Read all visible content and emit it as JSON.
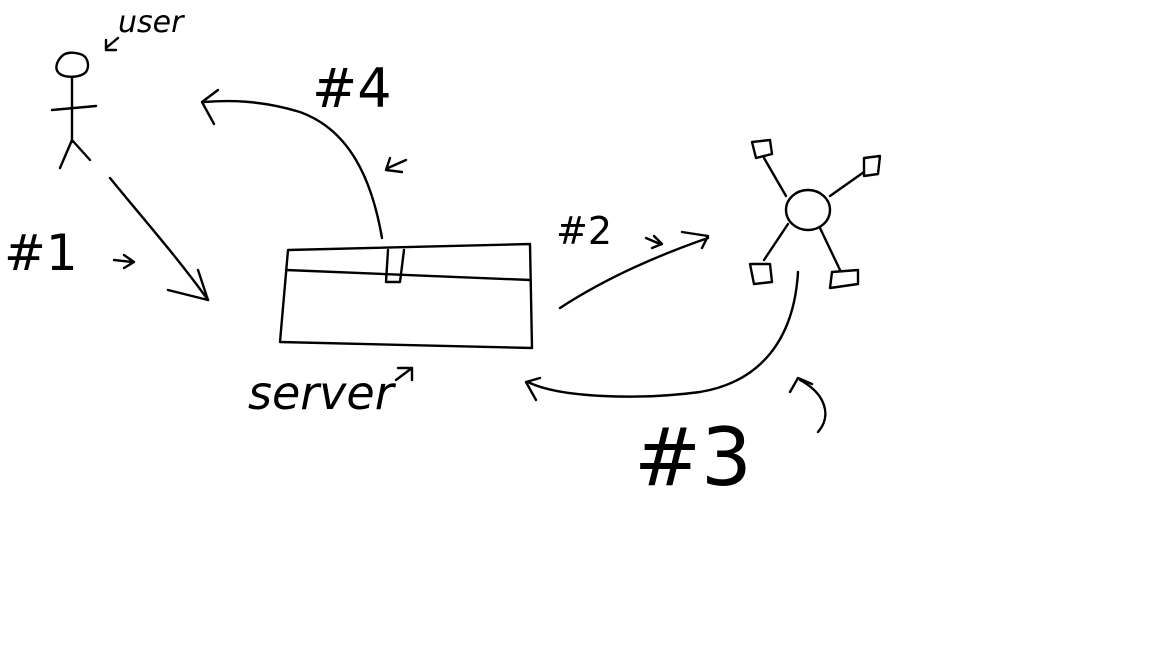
{
  "colors": {
    "ink": "#000000",
    "background": "#ffffff"
  },
  "labels": {
    "user": "user",
    "step_one": "#1",
    "step_two": "#2",
    "step_three": "#3",
    "step_four": "#4",
    "server": "server"
  },
  "icons": [
    "stick-figure-user-icon",
    "server-box-icon",
    "network-hub-icon"
  ]
}
